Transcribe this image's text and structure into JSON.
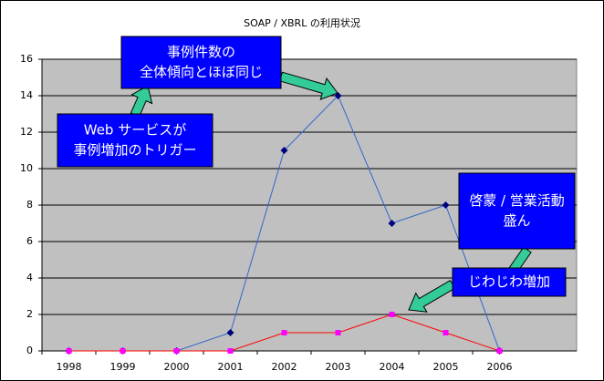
{
  "chart_data": {
    "type": "line",
    "title": "SOAP / XBRL の利用状況",
    "categories": [
      "1998",
      "1999",
      "2000",
      "2001",
      "2002",
      "2003",
      "2004",
      "2005",
      "2006"
    ],
    "series": [
      {
        "color": "#3366cc",
        "marker_color": "#000080",
        "marker": "diamond",
        "values": [
          0,
          0,
          0,
          1,
          11,
          14,
          7,
          8,
          0
        ]
      },
      {
        "color": "#ff0000",
        "marker_color": "#ff00ff",
        "marker": "square",
        "values": [
          0,
          0,
          0,
          0,
          1,
          1,
          2,
          1,
          0
        ]
      }
    ],
    "ylim": [
      0,
      16
    ],
    "yticks": [
      0,
      2,
      4,
      6,
      8,
      10,
      12,
      14,
      16
    ],
    "grid": true,
    "annotations": [
      {
        "lines": [
          "事例件数の",
          "全体傾向とほぼ同じ"
        ]
      },
      {
        "lines": [
          "Web サービスが",
          "事例増加のトリガー"
        ]
      },
      {
        "lines": [
          "啓蒙 / 営業活動",
          "盛ん"
        ]
      },
      {
        "lines": [
          "じわじわ増加"
        ]
      }
    ]
  }
}
